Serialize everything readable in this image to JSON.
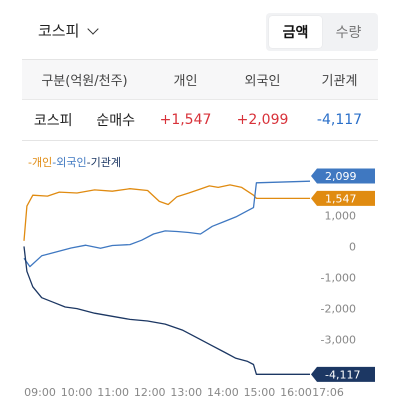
{
  "header": {
    "market": "코스피",
    "segments": [
      "금액",
      "수량"
    ],
    "active_segment": "금액"
  },
  "table": {
    "headers": [
      "구분(억원/천주)",
      "개인",
      "외국인",
      "기관계"
    ],
    "row": {
      "market": "코스피",
      "type": "순매수",
      "individual": "+1,547",
      "foreign": "+2,099",
      "institution": "-4,117"
    }
  },
  "colors": {
    "individual": "#e08b11",
    "foreign": "#3f78c1",
    "institution": "#1c3763",
    "positive": "#d8323a",
    "negative": "#2a6fc9"
  },
  "chart_data": {
    "type": "line",
    "legend": [
      "개인",
      "외국인",
      "기관계"
    ],
    "x_ticks": [
      "09:00",
      "10:00",
      "11:00",
      "12:00",
      "13:00",
      "14:00",
      "15:00",
      "16:00",
      "17:06"
    ],
    "y_ticks": [
      1000,
      0,
      -1000,
      -2000,
      -3000
    ],
    "y_tick_labels": [
      "1,000",
      "0",
      "-1,000",
      "-2,000",
      "-3,000"
    ],
    "ylim": [
      -4300,
      2300
    ],
    "series": [
      {
        "name": "개인",
        "final_label": "1,547",
        "points": [
          [
            "09:00",
            180
          ],
          [
            "09:05",
            1300
          ],
          [
            "09:15",
            1650
          ],
          [
            "09:40",
            1620
          ],
          [
            "10:00",
            1750
          ],
          [
            "10:30",
            1720
          ],
          [
            "11:00",
            1820
          ],
          [
            "11:30",
            1780
          ],
          [
            "12:00",
            1860
          ],
          [
            "12:30",
            1800
          ],
          [
            "12:50",
            1450
          ],
          [
            "13:05",
            1350
          ],
          [
            "13:20",
            1600
          ],
          [
            "13:40",
            1720
          ],
          [
            "14:00",
            1850
          ],
          [
            "14:15",
            1950
          ],
          [
            "14:30",
            1900
          ],
          [
            "14:50",
            1980
          ],
          [
            "15:10",
            1900
          ],
          [
            "15:30",
            1650
          ],
          [
            "15:35",
            1550
          ],
          [
            "17:06",
            1547
          ]
        ]
      },
      {
        "name": "외국인",
        "final_label": "2,099",
        "points": [
          [
            "09:00",
            -380
          ],
          [
            "09:10",
            -650
          ],
          [
            "09:30",
            -300
          ],
          [
            "10:00",
            -150
          ],
          [
            "10:20",
            -50
          ],
          [
            "10:45",
            40
          ],
          [
            "11:10",
            -60
          ],
          [
            "11:30",
            30
          ],
          [
            "12:00",
            60
          ],
          [
            "12:20",
            200
          ],
          [
            "12:40",
            400
          ],
          [
            "13:00",
            500
          ],
          [
            "13:20",
            480
          ],
          [
            "13:40",
            450
          ],
          [
            "14:00",
            400
          ],
          [
            "14:20",
            650
          ],
          [
            "14:40",
            800
          ],
          [
            "15:00",
            950
          ],
          [
            "15:20",
            1150
          ],
          [
            "15:30",
            1250
          ],
          [
            "15:35",
            2050
          ],
          [
            "17:06",
            2099
          ]
        ]
      },
      {
        "name": "기관계",
        "final_label": "-4,117",
        "points": [
          [
            "09:00",
            0
          ],
          [
            "09:05",
            -800
          ],
          [
            "09:15",
            -1300
          ],
          [
            "09:30",
            -1650
          ],
          [
            "09:50",
            -1800
          ],
          [
            "10:10",
            -1950
          ],
          [
            "10:30",
            -2000
          ],
          [
            "11:00",
            -2150
          ],
          [
            "11:30",
            -2250
          ],
          [
            "12:00",
            -2350
          ],
          [
            "12:30",
            -2400
          ],
          [
            "13:00",
            -2500
          ],
          [
            "13:30",
            -2700
          ],
          [
            "14:00",
            -3000
          ],
          [
            "14:20",
            -3200
          ],
          [
            "14:40",
            -3400
          ],
          [
            "15:00",
            -3600
          ],
          [
            "15:20",
            -3700
          ],
          [
            "15:30",
            -3800
          ],
          [
            "15:35",
            -4117
          ],
          [
            "17:06",
            -4117
          ]
        ]
      }
    ]
  }
}
